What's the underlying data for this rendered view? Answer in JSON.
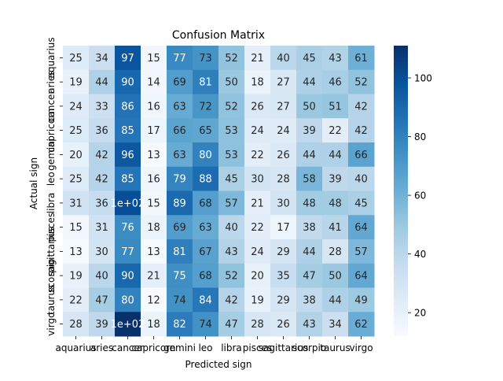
{
  "chart_data": {
    "type": "heatmap",
    "title": "Confusion Matrix",
    "xlabel": "Predicted sign",
    "ylabel": "Actual sign",
    "x_categories": [
      "aquarius",
      "aries",
      "cancer",
      "capricorn",
      "gemini",
      "leo",
      "libra",
      "pisces",
      "sagittarius",
      "scorpio",
      "taurus",
      "virgo"
    ],
    "y_categories": [
      "aquarius",
      "aries",
      "cancer",
      "capricorn",
      "gemini",
      "leo",
      "libra",
      "pisces",
      "sagittarius",
      "scorpio",
      "taurus",
      "virgo"
    ],
    "values": [
      [
        25,
        34,
        97,
        15,
        77,
        73,
        52,
        21,
        40,
        45,
        43,
        61
      ],
      [
        19,
        44,
        90,
        14,
        69,
        81,
        50,
        18,
        27,
        44,
        46,
        52
      ],
      [
        24,
        33,
        86,
        16,
        63,
        72,
        52,
        26,
        27,
        50,
        51,
        42
      ],
      [
        25,
        36,
        85,
        17,
        66,
        65,
        53,
        24,
        24,
        39,
        22,
        42
      ],
      [
        20,
        42,
        96,
        13,
        63,
        80,
        53,
        22,
        26,
        44,
        44,
        66
      ],
      [
        25,
        42,
        85,
        16,
        79,
        88,
        45,
        30,
        28,
        58,
        39,
        40
      ],
      [
        31,
        36,
        100,
        15,
        89,
        68,
        57,
        21,
        30,
        48,
        48,
        45
      ],
      [
        15,
        31,
        76,
        18,
        69,
        63,
        40,
        22,
        17,
        38,
        41,
        64
      ],
      [
        13,
        30,
        77,
        13,
        81,
        67,
        43,
        24,
        29,
        44,
        28,
        57
      ],
      [
        19,
        40,
        90,
        21,
        75,
        68,
        52,
        20,
        35,
        47,
        50,
        64
      ],
      [
        22,
        47,
        80,
        12,
        74,
        84,
        42,
        19,
        29,
        38,
        44,
        49
      ],
      [
        28,
        39,
        111,
        18,
        82,
        74,
        47,
        28,
        26,
        43,
        34,
        62
      ]
    ],
    "annotations": [
      [
        "25",
        "34",
        "97",
        "15",
        "77",
        "73",
        "52",
        "21",
        "40",
        "45",
        "43",
        "61"
      ],
      [
        "19",
        "44",
        "90",
        "14",
        "69",
        "81",
        "50",
        "18",
        "27",
        "44",
        "46",
        "52"
      ],
      [
        "24",
        "33",
        "86",
        "16",
        "63",
        "72",
        "52",
        "26",
        "27",
        "50",
        "51",
        "42"
      ],
      [
        "25",
        "36",
        "85",
        "17",
        "66",
        "65",
        "53",
        "24",
        "24",
        "39",
        "22",
        "42"
      ],
      [
        "20",
        "42",
        "96",
        "13",
        "63",
        "80",
        "53",
        "22",
        "26",
        "44",
        "44",
        "66"
      ],
      [
        "25",
        "42",
        "85",
        "16",
        "79",
        "88",
        "45",
        "30",
        "28",
        "58",
        "39",
        "40"
      ],
      [
        "31",
        "36",
        "1e+02",
        "15",
        "89",
        "68",
        "57",
        "21",
        "30",
        "48",
        "48",
        "45"
      ],
      [
        "15",
        "31",
        "76",
        "18",
        "69",
        "63",
        "40",
        "22",
        "17",
        "38",
        "41",
        "64"
      ],
      [
        "13",
        "30",
        "77",
        "13",
        "81",
        "67",
        "43",
        "24",
        "29",
        "44",
        "28",
        "57"
      ],
      [
        "19",
        "40",
        "90",
        "21",
        "75",
        "68",
        "52",
        "20",
        "35",
        "47",
        "50",
        "64"
      ],
      [
        "22",
        "47",
        "80",
        "12",
        "74",
        "84",
        "42",
        "19",
        "29",
        "38",
        "44",
        "49"
      ],
      [
        "28",
        "39",
        "1e+02",
        "18",
        "82",
        "74",
        "47",
        "28",
        "26",
        "43",
        "34",
        "62"
      ]
    ],
    "colorbar": {
      "min": 12,
      "max": 111,
      "ticks": [
        20,
        40,
        60,
        80,
        100
      ]
    },
    "colormap": [
      "#f7fbff",
      "#deebf7",
      "#c6dbef",
      "#9ecae1",
      "#6baed6",
      "#4292c6",
      "#2171b5",
      "#08519c",
      "#08306b"
    ]
  }
}
